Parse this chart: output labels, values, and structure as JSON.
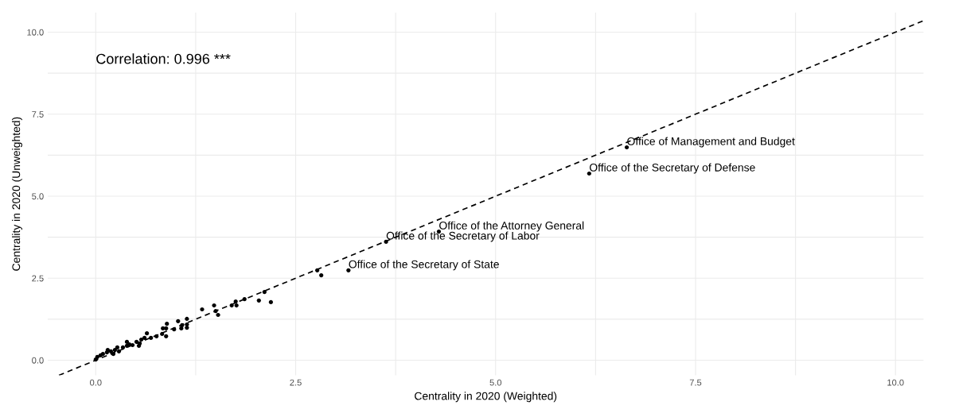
{
  "chart_data": {
    "type": "scatter",
    "xlabel": "Centrality in 2020 (Weighted)",
    "ylabel": "Centrality in 2020 (Unweighted)",
    "xlim": [
      -0.6,
      10.35
    ],
    "ylim": [
      -0.46,
      10.6
    ],
    "xticks": [
      {
        "value": 0,
        "label": "0.0"
      },
      {
        "value": 1.25,
        "label": null
      },
      {
        "value": 2.5,
        "label": "2.5"
      },
      {
        "value": 3.75,
        "label": null
      },
      {
        "value": 5,
        "label": "5.0"
      },
      {
        "value": 6.25,
        "label": null
      },
      {
        "value": 7.5,
        "label": "7.5"
      },
      {
        "value": 8.75,
        "label": null
      },
      {
        "value": 10,
        "label": "10.0"
      }
    ],
    "yticks": [
      {
        "value": 0,
        "label": "0.0"
      },
      {
        "value": 1.25,
        "label": null
      },
      {
        "value": 2.5,
        "label": "2.5"
      },
      {
        "value": 3.75,
        "label": null
      },
      {
        "value": 5,
        "label": "5.0"
      },
      {
        "value": 6.25,
        "label": null
      },
      {
        "value": 7.5,
        "label": "7.5"
      },
      {
        "value": 8.75,
        "label": null
      },
      {
        "value": 10,
        "label": "10.0"
      }
    ],
    "grid": true,
    "marker": "circle",
    "series": [
      {
        "color": "#000000",
        "x": [
          6.64,
          6.17,
          4.29,
          3.63,
          3.16,
          2.77,
          2.82,
          2.19,
          2.04,
          2.11,
          1.86,
          1.75,
          1.76,
          1.7,
          1.48,
          1.5,
          1.53,
          1.33,
          1.14,
          1.14,
          1.08,
          1.03,
          0.98,
          1.07,
          1.14,
          0.89,
          0.88,
          0.84,
          0.88,
          0.83,
          0.76,
          0.69,
          0.64,
          0.61,
          0.57,
          0.55,
          0.54,
          0.51,
          0.46,
          0.39,
          0.39,
          0.34,
          0.27,
          0.24,
          0.19,
          0.14,
          0.09,
          0.06,
          0.02,
          0.0,
          0.15,
          0.29,
          0.42,
          0.22
        ],
        "values": [
          6.49,
          5.69,
          3.92,
          3.61,
          2.74,
          2.74,
          2.59,
          1.77,
          1.82,
          2.08,
          1.86,
          1.79,
          1.67,
          1.67,
          1.67,
          1.5,
          1.38,
          1.55,
          1.26,
          1.09,
          1.07,
          1.19,
          0.94,
          0.97,
          0.99,
          1.11,
          0.97,
          0.97,
          0.73,
          0.8,
          0.73,
          0.68,
          0.82,
          0.68,
          0.63,
          0.51,
          0.44,
          0.56,
          0.46,
          0.56,
          0.44,
          0.39,
          0.39,
          0.31,
          0.27,
          0.24,
          0.19,
          0.15,
          0.1,
          0.02,
          0.31,
          0.27,
          0.48,
          0.19
        ]
      },
      {
        "type": "line",
        "color": "#000000",
        "line_style": "dashed",
        "marker": "none",
        "x": [
          -0.46,
          10.35
        ],
        "values": [
          -0.46,
          10.35
        ]
      }
    ],
    "annotations": [
      "Correlation: 0.996 ***",
      {
        "text": "Office of Management and Budget",
        "x": 6.64,
        "y": 6.49
      },
      {
        "text": "Office of the Secretary of Defense",
        "x": 6.17,
        "y": 5.69
      },
      {
        "text": "Office of the Attorney General",
        "x": 4.29,
        "y": 3.92
      },
      {
        "text": "Office of the Secretary of Labor",
        "x": 3.63,
        "y": 3.61
      },
      {
        "text": "Office of the Secretary of State",
        "x": 3.16,
        "y": 2.74
      }
    ]
  }
}
